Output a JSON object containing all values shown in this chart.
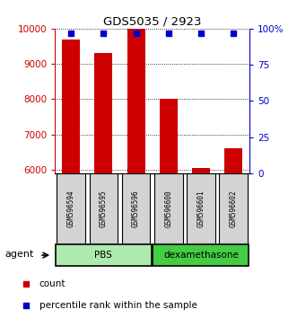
{
  "title": "GDS5035 / 2923",
  "samples": [
    "GSM596594",
    "GSM596595",
    "GSM596596",
    "GSM596600",
    "GSM596601",
    "GSM596602"
  ],
  "counts": [
    9700,
    9300,
    10000,
    8000,
    6050,
    6600
  ],
  "percentiles": [
    97,
    97,
    97,
    97,
    97,
    97
  ],
  "baseline": 5900,
  "ylim_left": [
    5900,
    10000
  ],
  "ylim_right": [
    0,
    100
  ],
  "yticks_left": [
    6000,
    7000,
    8000,
    9000,
    10000
  ],
  "yticks_right": [
    0,
    25,
    50,
    75,
    100
  ],
  "groups": [
    {
      "label": "PBS",
      "indices": [
        0,
        1,
        2
      ],
      "color": "#aeeaae"
    },
    {
      "label": "dexamethasone",
      "indices": [
        3,
        4,
        5
      ],
      "color": "#44cc44"
    }
  ],
  "agent_label": "agent",
  "bar_color": "#cc0000",
  "dot_color": "#0000cc",
  "legend_count_label": "count",
  "legend_pct_label": "percentile rank within the sample",
  "left_axis_color": "#cc0000",
  "right_axis_color": "#0000cc",
  "group_box_color": "#d3d3d3",
  "group_box_border": "#000000"
}
